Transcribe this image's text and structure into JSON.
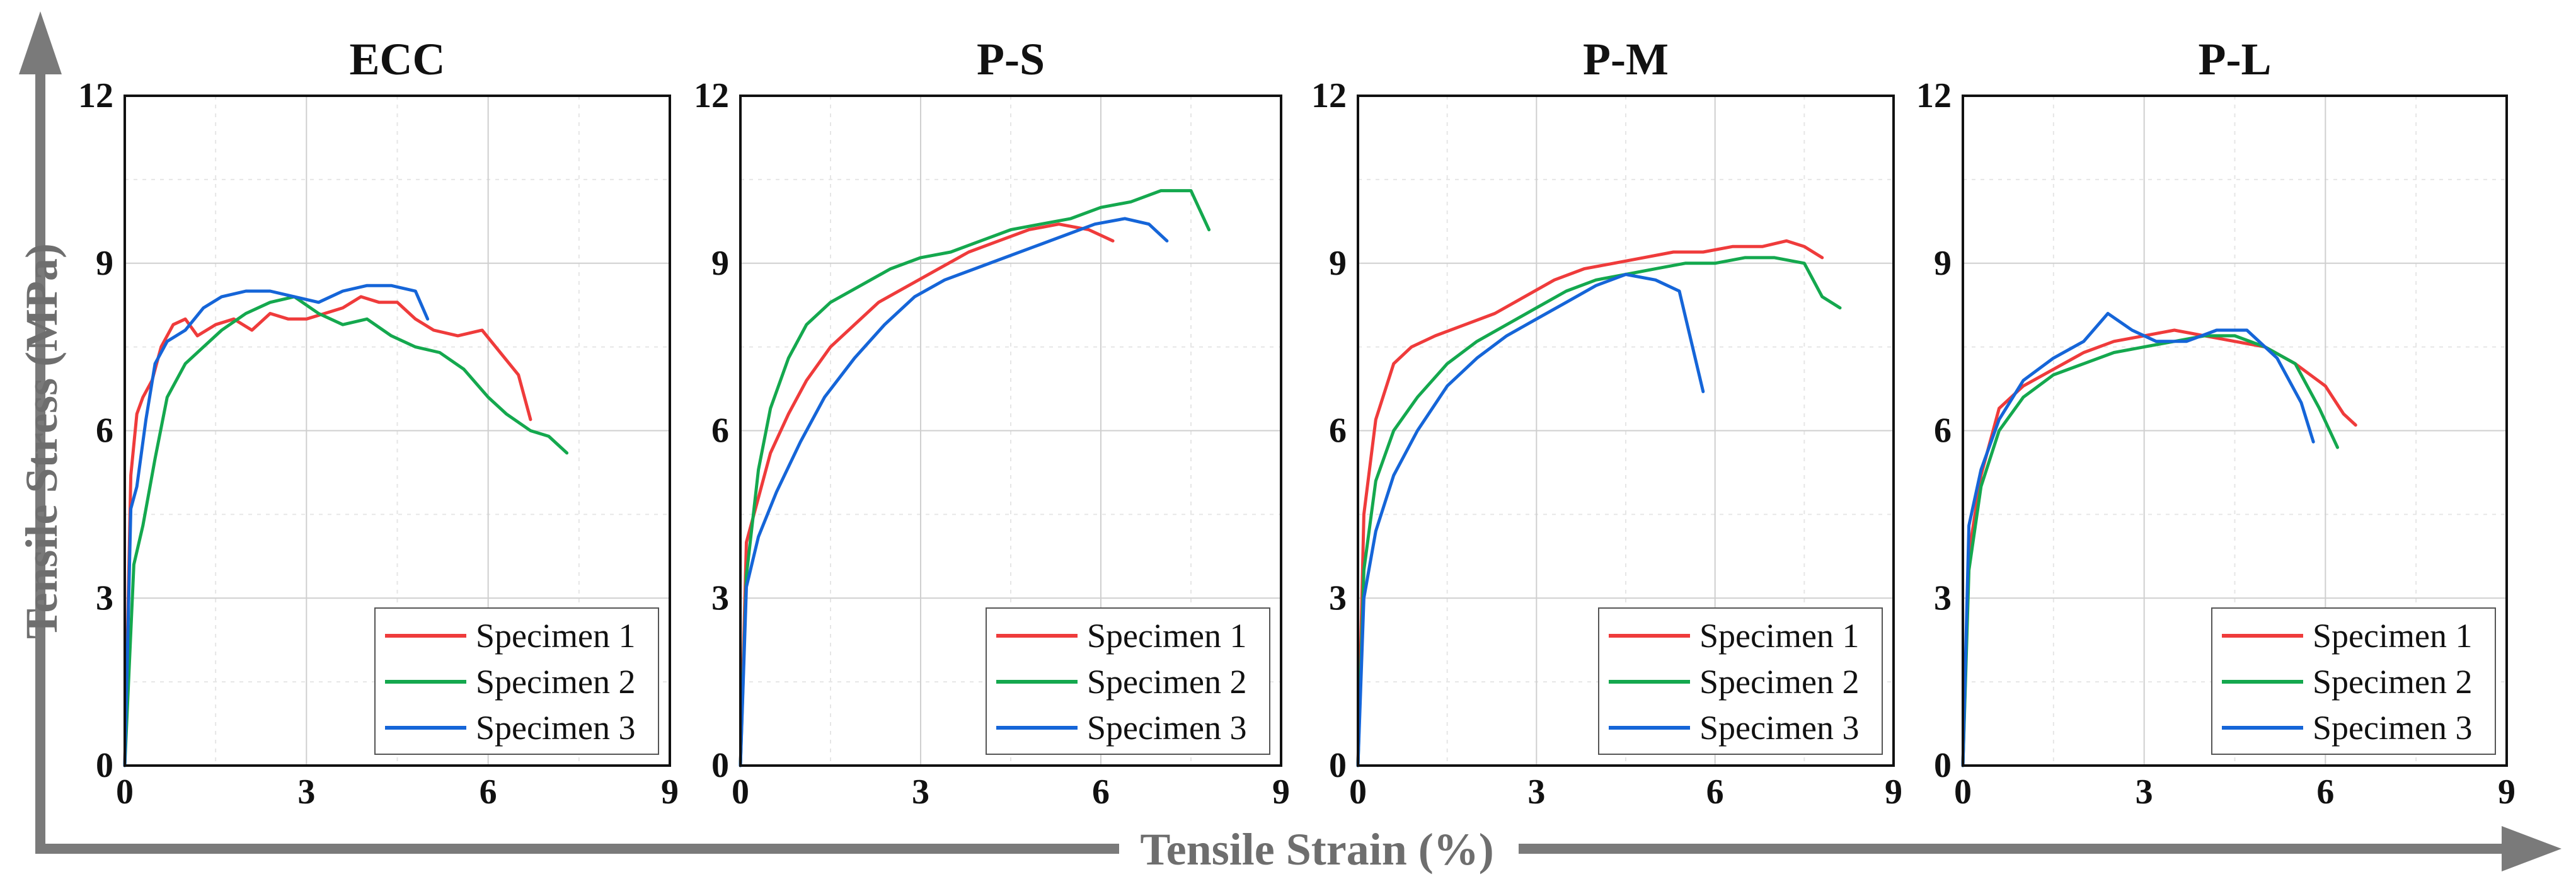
{
  "axis_titles": {
    "y": "Tensile Stress (MPa)",
    "x": "Tensile Strain (%)"
  },
  "colors": {
    "Specimen 1": "#ef3b3b",
    "Specimen 2": "#14a84e",
    "Specimen 3": "#1565d8",
    "arrow": "#7a7a7a"
  },
  "chart_data": [
    {
      "type": "line",
      "title": "ECC",
      "xlim": [
        0,
        9
      ],
      "ylim": [
        0,
        12
      ],
      "xticks": [
        "0",
        "3",
        "6",
        "9"
      ],
      "yticks": [
        "0",
        "3",
        "6",
        "9",
        "12"
      ],
      "grid": true,
      "legend": "bottom-right",
      "series": [
        {
          "name": "Specimen 1",
          "x": [
            0,
            0.1,
            0.2,
            0.3,
            0.45,
            0.6,
            0.8,
            1.0,
            1.2,
            1.5,
            1.8,
            2.1,
            2.4,
            2.7,
            3.0,
            3.3,
            3.6,
            3.9,
            4.2,
            4.5,
            4.8,
            5.1,
            5.5,
            5.9,
            6.2,
            6.5,
            6.7
          ],
          "y": [
            0,
            5.2,
            6.3,
            6.6,
            6.9,
            7.5,
            7.9,
            8.0,
            7.7,
            7.9,
            8.0,
            7.8,
            8.1,
            8.0,
            8.0,
            8.1,
            8.2,
            8.4,
            8.3,
            8.3,
            8.0,
            7.8,
            7.7,
            7.8,
            7.4,
            7.0,
            6.2
          ]
        },
        {
          "name": "Specimen 2",
          "x": [
            0,
            0.15,
            0.3,
            0.5,
            0.7,
            1.0,
            1.3,
            1.6,
            2.0,
            2.4,
            2.8,
            3.2,
            3.6,
            4.0,
            4.4,
            4.8,
            5.2,
            5.6,
            6.0,
            6.3,
            6.7,
            7.0,
            7.3
          ],
          "y": [
            0,
            3.6,
            4.3,
            5.5,
            6.6,
            7.2,
            7.5,
            7.8,
            8.1,
            8.3,
            8.4,
            8.1,
            7.9,
            8.0,
            7.7,
            7.5,
            7.4,
            7.1,
            6.6,
            6.3,
            6.0,
            5.9,
            5.6
          ]
        },
        {
          "name": "Specimen 3",
          "x": [
            0,
            0.1,
            0.2,
            0.35,
            0.5,
            0.7,
            1.0,
            1.3,
            1.6,
            2.0,
            2.4,
            2.8,
            3.2,
            3.6,
            4.0,
            4.4,
            4.8,
            5.0
          ],
          "y": [
            0,
            4.6,
            5.0,
            6.2,
            7.2,
            7.6,
            7.8,
            8.2,
            8.4,
            8.5,
            8.5,
            8.4,
            8.3,
            8.5,
            8.6,
            8.6,
            8.5,
            8.0
          ]
        }
      ]
    },
    {
      "type": "line",
      "title": "P-S",
      "xlim": [
        0,
        9
      ],
      "ylim": [
        0,
        12
      ],
      "xticks": [
        "0",
        "3",
        "6",
        "9"
      ],
      "yticks": [
        "0",
        "3",
        "6",
        "9",
        "12"
      ],
      "grid": true,
      "legend": "bottom-right",
      "series": [
        {
          "name": "Specimen 1",
          "x": [
            0,
            0.1,
            0.3,
            0.5,
            0.8,
            1.1,
            1.5,
            1.9,
            2.3,
            2.8,
            3.3,
            3.8,
            4.3,
            4.8,
            5.3,
            5.8,
            6.2
          ],
          "y": [
            0,
            4.0,
            4.8,
            5.6,
            6.3,
            6.9,
            7.5,
            7.9,
            8.3,
            8.6,
            8.9,
            9.2,
            9.4,
            9.6,
            9.7,
            9.6,
            9.4
          ]
        },
        {
          "name": "Specimen 2",
          "x": [
            0,
            0.1,
            0.3,
            0.5,
            0.8,
            1.1,
            1.5,
            2.0,
            2.5,
            3.0,
            3.5,
            4.0,
            4.5,
            5.0,
            5.5,
            6.0,
            6.5,
            7.0,
            7.5,
            7.8
          ],
          "y": [
            0,
            3.4,
            5.3,
            6.4,
            7.3,
            7.9,
            8.3,
            8.6,
            8.9,
            9.1,
            9.2,
            9.4,
            9.6,
            9.7,
            9.8,
            10.0,
            10.1,
            10.3,
            10.3,
            9.6
          ]
        },
        {
          "name": "Specimen 3",
          "x": [
            0,
            0.1,
            0.3,
            0.6,
            1.0,
            1.4,
            1.9,
            2.4,
            2.9,
            3.4,
            3.9,
            4.4,
            4.9,
            5.4,
            5.9,
            6.4,
            6.8,
            7.1
          ],
          "y": [
            0,
            3.2,
            4.1,
            4.9,
            5.8,
            6.6,
            7.3,
            7.9,
            8.4,
            8.7,
            8.9,
            9.1,
            9.3,
            9.5,
            9.7,
            9.8,
            9.7,
            9.4
          ]
        }
      ]
    },
    {
      "type": "line",
      "title": "P-M",
      "xlim": [
        0,
        9
      ],
      "ylim": [
        0,
        12
      ],
      "xticks": [
        "0",
        "3",
        "6",
        "9"
      ],
      "yticks": [
        "0",
        "3",
        "6",
        "9",
        "12"
      ],
      "grid": true,
      "legend": "bottom-right",
      "series": [
        {
          "name": "Specimen 1",
          "x": [
            0,
            0.1,
            0.3,
            0.6,
            0.9,
            1.3,
            1.8,
            2.3,
            2.8,
            3.3,
            3.8,
            4.3,
            4.8,
            5.3,
            5.8,
            6.3,
            6.8,
            7.2,
            7.5,
            7.8
          ],
          "y": [
            0,
            4.5,
            6.2,
            7.2,
            7.5,
            7.7,
            7.9,
            8.1,
            8.4,
            8.7,
            8.9,
            9.0,
            9.1,
            9.2,
            9.2,
            9.3,
            9.3,
            9.4,
            9.3,
            9.1
          ]
        },
        {
          "name": "Specimen 2",
          "x": [
            0,
            0.1,
            0.3,
            0.6,
            1.0,
            1.5,
            2.0,
            2.5,
            3.0,
            3.5,
            4.0,
            4.5,
            5.0,
            5.5,
            6.0,
            6.5,
            7.0,
            7.5,
            7.8,
            8.1
          ],
          "y": [
            0,
            3.5,
            5.1,
            6.0,
            6.6,
            7.2,
            7.6,
            7.9,
            8.2,
            8.5,
            8.7,
            8.8,
            8.9,
            9.0,
            9.0,
            9.1,
            9.1,
            9.0,
            8.4,
            8.2
          ]
        },
        {
          "name": "Specimen 3",
          "x": [
            0,
            0.1,
            0.3,
            0.6,
            1.0,
            1.5,
            2.0,
            2.5,
            3.0,
            3.5,
            4.0,
            4.5,
            5.0,
            5.4,
            5.8
          ],
          "y": [
            0,
            3.0,
            4.2,
            5.2,
            6.0,
            6.8,
            7.3,
            7.7,
            8.0,
            8.3,
            8.6,
            8.8,
            8.7,
            8.5,
            6.7
          ]
        }
      ]
    },
    {
      "type": "line",
      "title": "P-L",
      "xlim": [
        0,
        9
      ],
      "ylim": [
        0,
        12
      ],
      "xticks": [
        "0",
        "3",
        "6",
        "9"
      ],
      "yticks": [
        "0",
        "3",
        "6",
        "9",
        "12"
      ],
      "grid": true,
      "legend": "bottom-right",
      "series": [
        {
          "name": "Specimen 1",
          "x": [
            0,
            0.1,
            0.3,
            0.6,
            1.0,
            1.5,
            2.0,
            2.5,
            3.0,
            3.5,
            4.0,
            4.5,
            5.0,
            5.5,
            6.0,
            6.3,
            6.5
          ],
          "y": [
            0,
            3.8,
            5.2,
            6.4,
            6.8,
            7.1,
            7.4,
            7.6,
            7.7,
            7.8,
            7.7,
            7.6,
            7.5,
            7.2,
            6.8,
            6.3,
            6.1
          ]
        },
        {
          "name": "Specimen 2",
          "x": [
            0,
            0.1,
            0.3,
            0.6,
            1.0,
            1.5,
            2.0,
            2.5,
            3.0,
            3.5,
            4.0,
            4.5,
            5.0,
            5.5,
            5.9,
            6.2
          ],
          "y": [
            0,
            3.5,
            5.0,
            6.0,
            6.6,
            7.0,
            7.2,
            7.4,
            7.5,
            7.6,
            7.7,
            7.7,
            7.5,
            7.2,
            6.4,
            5.7
          ]
        },
        {
          "name": "Specimen 3",
          "x": [
            0,
            0.1,
            0.3,
            0.6,
            1.0,
            1.5,
            2.0,
            2.4,
            2.8,
            3.2,
            3.7,
            4.2,
            4.7,
            5.2,
            5.6,
            5.8
          ],
          "y": [
            0,
            4.3,
            5.3,
            6.2,
            6.9,
            7.3,
            7.6,
            8.1,
            7.8,
            7.6,
            7.6,
            7.8,
            7.8,
            7.3,
            6.5,
            5.8
          ]
        }
      ]
    }
  ]
}
